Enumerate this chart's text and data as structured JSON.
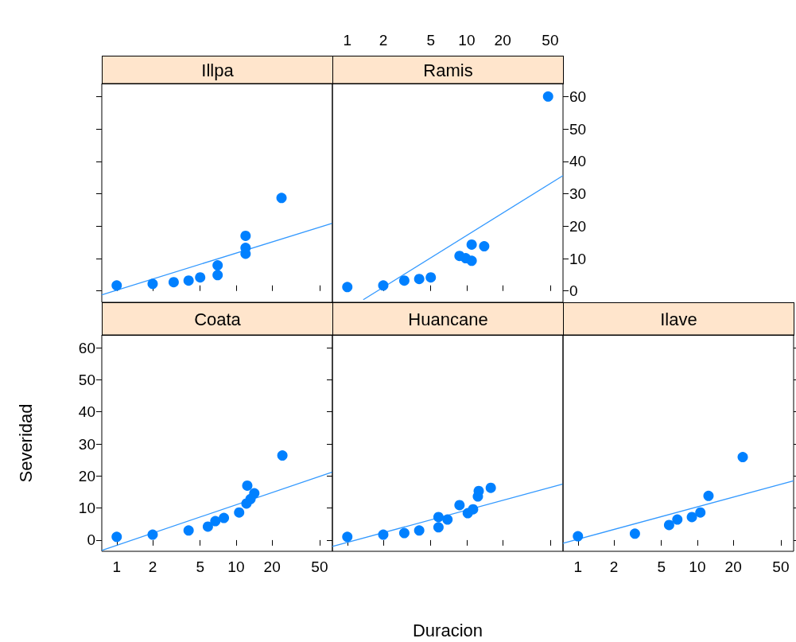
{
  "chart_data": [
    {
      "type": "scatter",
      "title": "Illpa",
      "log": "x",
      "tick_labels": false,
      "xlim": [
        0.75,
        64
      ],
      "xticks": [
        1,
        2,
        5,
        10,
        20,
        50
      ],
      "ylim": [
        -3.5,
        64
      ],
      "yticks": [
        0,
        10,
        20,
        30,
        40,
        50,
        60
      ],
      "series": [
        {
          "marker": "circle",
          "color": "#0080ff",
          "x": [
            1,
            2,
            3,
            4,
            5,
            7,
            7,
            12,
            12,
            12,
            24
          ],
          "values": [
            1.7,
            2.2,
            2.7,
            3.2,
            4.2,
            4.9,
            7.9,
            11.5,
            13.3,
            17,
            28.7
          ]
        },
        {
          "type": "line",
          "color": "#3399ff",
          "x": [
            0.75,
            64
          ],
          "values": [
            -1.2,
            20.9
          ]
        }
      ]
    },
    {
      "type": "scatter",
      "title": "Ramis",
      "log": "x",
      "xlim": [
        0.75,
        64
      ],
      "xticks": [
        1,
        2,
        5,
        10,
        20,
        50
      ],
      "ylim": [
        -3.5,
        64
      ],
      "yticks": [
        0,
        10,
        20,
        30,
        40,
        50,
        60
      ],
      "series": [
        {
          "marker": "circle",
          "color": "#0080ff",
          "x": [
            1,
            2,
            3,
            4,
            5,
            8.7,
            9.8,
            11,
            11,
            14,
            48
          ],
          "values": [
            1.2,
            1.7,
            3.2,
            3.7,
            4.2,
            10.8,
            10.1,
            9.3,
            14.3,
            13.8,
            60
          ]
        },
        {
          "type": "line",
          "color": "#3399ff",
          "x": [
            1.36,
            64
          ],
          "values": [
            -2.7,
            35.6
          ]
        }
      ]
    },
    {
      "type": "scatter",
      "title": "Coata",
      "ylabel": "Severidad",
      "log": "x",
      "xlim": [
        0.75,
        64
      ],
      "xticks": [
        1,
        2,
        5,
        10,
        20,
        50
      ],
      "ylim": [
        -3.5,
        64
      ],
      "yticks": [
        0,
        10,
        20,
        30,
        40,
        50,
        60
      ],
      "series": [
        {
          "marker": "circle",
          "color": "#0080ff",
          "x": [
            1,
            2,
            4,
            5.8,
            6.7,
            7.9,
            10.6,
            12.2,
            13.2,
            14.2,
            12.4,
            24.4
          ],
          "values": [
            1,
            1.7,
            3,
            4.2,
            5.9,
            6.9,
            8.6,
            11.4,
            12.8,
            14.6,
            17,
            26.4
          ]
        },
        {
          "type": "line",
          "color": "#3399ff",
          "x": [
            0.75,
            64
          ],
          "values": [
            -3.2,
            21.2
          ]
        }
      ]
    },
    {
      "type": "scatter",
      "title": "Huancane",
      "xlabel": "Duracion",
      "log": "x",
      "tick_labels": false,
      "xlim": [
        0.75,
        64
      ],
      "xticks": [
        1,
        2,
        5,
        10,
        20,
        50
      ],
      "ylim": [
        -3.5,
        64
      ],
      "yticks": [
        0,
        10,
        20,
        30,
        40,
        50,
        60
      ],
      "series": [
        {
          "marker": "circle",
          "color": "#0080ff",
          "x": [
            1,
            2,
            3,
            4,
            5.8,
            5.8,
            6.9,
            8.7,
            10.2,
            11.3,
            12.4,
            12.6,
            15.9
          ],
          "values": [
            1,
            1.7,
            2.2,
            3,
            4,
            7.2,
            6.4,
            10.9,
            8.4,
            9.6,
            13.6,
            15.3,
            16.3
          ]
        },
        {
          "type": "line",
          "color": "#3399ff",
          "x": [
            0.75,
            64
          ],
          "values": [
            -2,
            17.5
          ]
        }
      ]
    },
    {
      "type": "scatter",
      "title": "Ilave",
      "log": "x",
      "tick_labels": "x",
      "xlim": [
        0.75,
        64
      ],
      "xticks": [
        1,
        2,
        5,
        10,
        20,
        50
      ],
      "ylim": [
        -3.5,
        64
      ],
      "yticks": [
        0,
        10,
        20,
        30,
        40,
        50,
        60
      ],
      "series": [
        {
          "marker": "circle",
          "color": "#0080ff",
          "x": [
            1,
            3,
            5.8,
            6.8,
            9,
            10.6,
            12.4,
            24
          ],
          "values": [
            1.2,
            2,
            4.7,
            6.4,
            7.2,
            8.6,
            13.8,
            25.9
          ]
        },
        {
          "type": "line",
          "color": "#3399ff",
          "x": [
            0.75,
            64
          ],
          "values": [
            -1,
            18.5
          ]
        }
      ]
    }
  ]
}
